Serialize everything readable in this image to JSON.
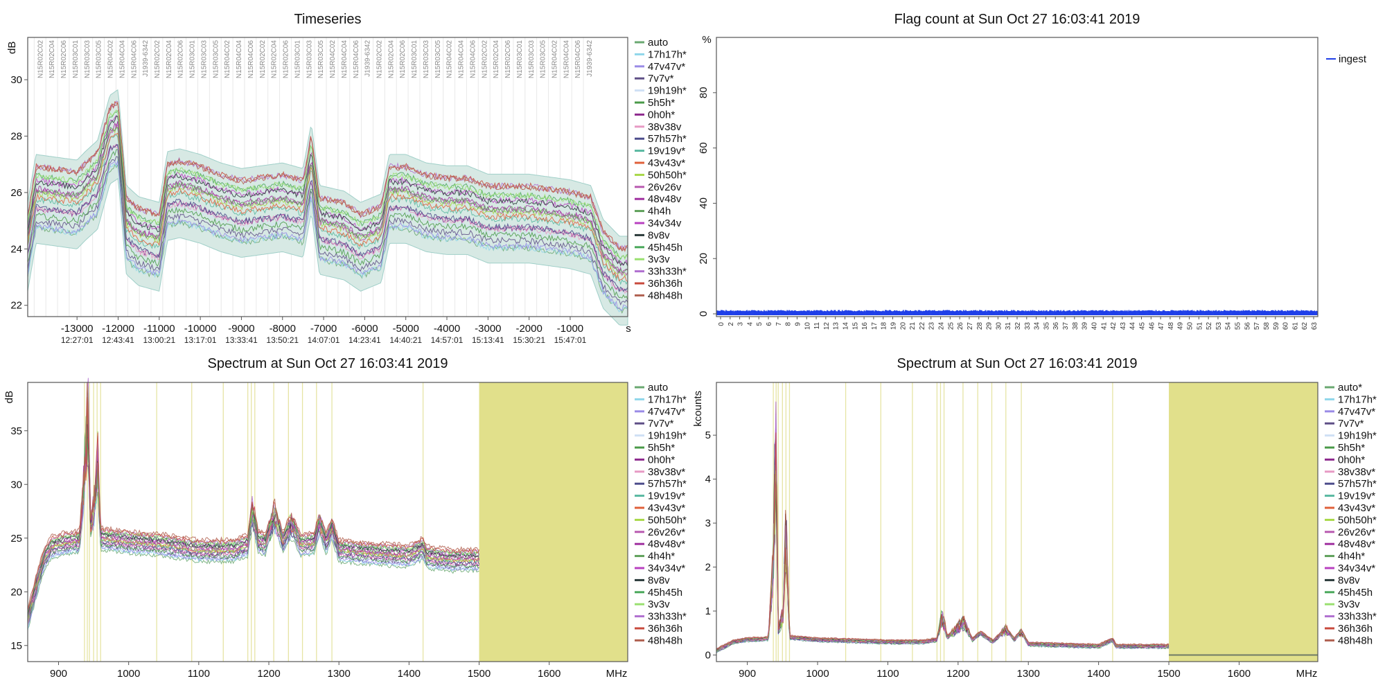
{
  "chart_data": [
    {
      "type": "line",
      "title": "Timeseries",
      "ylabel": "dB",
      "xunit": "s",
      "ylim": [
        21.6,
        31.5
      ],
      "xlim": [
        -14200,
        400
      ],
      "yticks": [
        22,
        24,
        26,
        28,
        30
      ],
      "xticks": [
        -13000,
        -12000,
        -11000,
        -10000,
        -9000,
        -8000,
        -7000,
        -6000,
        -5000,
        -4000,
        -3000,
        -2000,
        -1000
      ],
      "xtick_times": [
        "12:27:01",
        "12:43:41",
        "13:00:21",
        "13:17:01",
        "13:33:41",
        "13:50:21",
        "14:07:01",
        "14:23:41",
        "14:40:21",
        "14:57:01",
        "15:13:41",
        "15:30:21",
        "15:47:01"
      ],
      "scan_labels": [
        "N15R02C02",
        "N15R02C04",
        "N15R02C06",
        "N15R03C01",
        "N15R03C03",
        "N15R03C05",
        "N15R04C02",
        "N15R04C04",
        "N15R04C06",
        "J1939-6342",
        "N15R02C02",
        "N15R02C04",
        "N15R02C06",
        "N15R03C01",
        "N15R03C03",
        "N15R03C05",
        "N15R04C02",
        "N15R04C04",
        "N15R04C06",
        "N15R02C02",
        "N15R02C04",
        "N15R02C06",
        "N15R03C01",
        "N15R03C03",
        "N15R03C05",
        "N15R04C02",
        "N15R04C04",
        "N15R04C06",
        "J1939-6342",
        "N15R02C02",
        "N15R02C04",
        "N15R02C06",
        "N15R03C01",
        "N15R03C03",
        "N15R03C05",
        "N15R04C02",
        "N15R04C04",
        "N15R04C06",
        "N15R02C02",
        "N15R02C04",
        "N15R02C06",
        "N15R03C01",
        "N15R03C03",
        "N15R03C05",
        "N15R04C02",
        "N15R04C04",
        "N15R04C06",
        "J1939-6342"
      ],
      "legend_position": "right",
      "legend": [
        "auto",
        "17h17h*",
        "47v47v*",
        "7v7v*",
        "19h19h*",
        "5h5h*",
        "0h0h*",
        "38v38v",
        "57h57h*",
        "19v19v*",
        "43v43v*",
        "50h50h*",
        "26v26v",
        "48v48v",
        "4h4h",
        "34v34v",
        "8v8v",
        "45h45h",
        "3v3v",
        "33h33h*",
        "36h36h",
        "48h48h"
      ],
      "baseline_levels_dB": [
        [
          -14200,
          24.2
        ],
        [
          -14000,
          25.9
        ],
        [
          -13500,
          25.8
        ],
        [
          -13000,
          25.7
        ],
        [
          -12800,
          26.0
        ],
        [
          -12500,
          26.4
        ],
        [
          -12200,
          28.0
        ],
        [
          -12000,
          28.2
        ],
        [
          -11800,
          24.8
        ],
        [
          -11500,
          24.4
        ],
        [
          -11000,
          24.2
        ],
        [
          -10800,
          26.0
        ],
        [
          -10500,
          26.1
        ],
        [
          -10000,
          25.9
        ],
        [
          -9500,
          25.6
        ],
        [
          -9000,
          25.4
        ],
        [
          -8500,
          25.5
        ],
        [
          -8000,
          25.6
        ],
        [
          -7500,
          25.4
        ],
        [
          -7300,
          27.0
        ],
        [
          -7100,
          24.8
        ],
        [
          -6500,
          24.6
        ],
        [
          -6100,
          24.2
        ],
        [
          -5600,
          24.5
        ],
        [
          -5400,
          25.9
        ],
        [
          -5000,
          25.9
        ],
        [
          -4500,
          25.6
        ],
        [
          -4000,
          25.5
        ],
        [
          -3500,
          25.5
        ],
        [
          -3000,
          25.2
        ],
        [
          -2500,
          25.2
        ],
        [
          -2000,
          25.2
        ],
        [
          -1500,
          25.1
        ],
        [
          -1000,
          25.0
        ],
        [
          -500,
          24.8
        ],
        [
          -200,
          23.6
        ],
        [
          200,
          23.0
        ]
      ],
      "grid": false
    },
    {
      "type": "line",
      "title": "Flag count at Sun Oct 27 16:03:41 2019",
      "ylabel": "%",
      "ylim": [
        -1,
        100
      ],
      "yticks": [
        0,
        20,
        40,
        60,
        80
      ],
      "xticks": [
        0,
        2,
        3,
        4,
        5,
        6,
        7,
        8,
        9,
        10,
        11,
        12,
        13,
        14,
        15,
        16,
        17,
        18,
        19,
        20,
        21,
        22,
        23,
        24,
        25,
        26,
        27,
        28,
        29,
        30,
        31,
        32,
        33,
        34,
        35,
        36,
        37,
        38,
        39,
        40,
        41,
        42,
        43,
        44,
        45,
        46,
        47,
        48,
        49,
        50,
        51,
        52,
        53,
        54,
        55,
        56,
        57,
        58,
        59,
        60,
        61,
        62,
        63
      ],
      "legend_position": "top-right",
      "legend": [
        "ingest"
      ],
      "series": [
        {
          "name": "ingest",
          "value_percent": 0.9
        }
      ],
      "grid": false
    },
    {
      "type": "line",
      "title": "Spectrum at Sun Oct 27 16:03:41 2019",
      "ylabel": "dB",
      "xunit": "MHz",
      "xlim": [
        856,
        1712
      ],
      "ylim": [
        13.5,
        39.5
      ],
      "yticks": [
        15,
        20,
        25,
        30,
        35
      ],
      "xticks": [
        900,
        1000,
        1100,
        1200,
        1300,
        1400,
        1500,
        1600
      ],
      "shaded_range_MHz": [
        1500,
        1712
      ],
      "flag_lines_MHz": [
        937,
        941,
        944,
        950,
        955,
        960,
        1040,
        1090,
        1135,
        1170,
        1175,
        1180,
        1207,
        1228,
        1248,
        1268,
        1290,
        1420
      ],
      "legend_position": "right",
      "legend": [
        "auto",
        "17h17h*",
        "47v47v*",
        "7v7v*",
        "19h19h*",
        "5h5h*",
        "0h0h*",
        "38v38v*",
        "57h57h*",
        "19v19v*",
        "43v43v*",
        "50h50h*",
        "26v26v*",
        "48v48v*",
        "4h4h*",
        "34v34v*",
        "8v8v",
        "45h45h",
        "3v3v",
        "33h33h*",
        "36h36h",
        "48h48h"
      ],
      "mean_spectrum_dB": [
        [
          856,
          17.5
        ],
        [
          870,
          21.0
        ],
        [
          880,
          23.2
        ],
        [
          890,
          24.2
        ],
        [
          910,
          24.6
        ],
        [
          930,
          24.7
        ],
        [
          938,
          33.0
        ],
        [
          942,
          38.0
        ],
        [
          946,
          26.0
        ],
        [
          952,
          29.0
        ],
        [
          956,
          33.0
        ],
        [
          960,
          25.0
        ],
        [
          1000,
          24.7
        ],
        [
          1050,
          24.4
        ],
        [
          1100,
          23.9
        ],
        [
          1150,
          23.9
        ],
        [
          1170,
          24.4
        ],
        [
          1177,
          28.0
        ],
        [
          1185,
          24.7
        ],
        [
          1195,
          24.5
        ],
        [
          1208,
          27.5
        ],
        [
          1220,
          24.6
        ],
        [
          1232,
          26.5
        ],
        [
          1245,
          24.4
        ],
        [
          1265,
          24.6
        ],
        [
          1272,
          26.5
        ],
        [
          1282,
          24.6
        ],
        [
          1290,
          26.0
        ],
        [
          1300,
          23.9
        ],
        [
          1350,
          23.6
        ],
        [
          1400,
          23.4
        ],
        [
          1420,
          24.1
        ],
        [
          1425,
          23.3
        ],
        [
          1460,
          23.0
        ],
        [
          1500,
          23.0
        ]
      ],
      "grid": false
    },
    {
      "type": "line",
      "title": "Spectrum at Sun Oct 27 16:03:41 2019",
      "ylabel": "kcounts",
      "xunit": "MHz",
      "xlim": [
        856,
        1712
      ],
      "ylim": [
        -0.15,
        6.2
      ],
      "yticks": [
        0,
        1,
        2,
        3,
        4,
        5
      ],
      "xticks": [
        900,
        1000,
        1100,
        1200,
        1300,
        1400,
        1500,
        1600
      ],
      "shaded_range_MHz": [
        1500,
        1712
      ],
      "flag_lines_MHz": [
        937,
        941,
        944,
        950,
        955,
        960,
        1040,
        1090,
        1135,
        1170,
        1175,
        1180,
        1207,
        1228,
        1248,
        1268,
        1290,
        1420
      ],
      "legend_position": "right",
      "legend": [
        "auto*",
        "17h17h*",
        "47v47v*",
        "7v7v*",
        "19h19h*",
        "5h5h*",
        "0h0h*",
        "38v38v*",
        "57h57h*",
        "19v19v*",
        "43v43v*",
        "50h50h*",
        "26v26v*",
        "48v48v*",
        "4h4h*",
        "34v34v*",
        "8v8v",
        "45h45h",
        "3v3v",
        "33h33h*",
        "36h36h",
        "48h48h"
      ],
      "mean_spectrum_kcounts": [
        [
          856,
          0.1
        ],
        [
          880,
          0.3
        ],
        [
          900,
          0.35
        ],
        [
          930,
          0.37
        ],
        [
          937,
          2.3
        ],
        [
          941,
          5.8
        ],
        [
          944,
          0.6
        ],
        [
          951,
          1.0
        ],
        [
          955,
          3.2
        ],
        [
          960,
          0.4
        ],
        [
          1000,
          0.35
        ],
        [
          1100,
          0.3
        ],
        [
          1150,
          0.3
        ],
        [
          1170,
          0.35
        ],
        [
          1177,
          0.95
        ],
        [
          1185,
          0.4
        ],
        [
          1208,
          0.8
        ],
        [
          1220,
          0.35
        ],
        [
          1232,
          0.5
        ],
        [
          1250,
          0.3
        ],
        [
          1268,
          0.6
        ],
        [
          1280,
          0.35
        ],
        [
          1290,
          0.55
        ],
        [
          1300,
          0.25
        ],
        [
          1400,
          0.2
        ],
        [
          1420,
          0.35
        ],
        [
          1425,
          0.2
        ],
        [
          1500,
          0.2
        ],
        [
          1501,
          0.0
        ],
        [
          1712,
          0.0
        ]
      ],
      "grid": false
    }
  ],
  "colors": {
    "axis": "#555555",
    "flag_line": "#e6e4a4",
    "shaded": "#e1e08b",
    "envelope": "#d7e9e4",
    "flag_bars": "#1f3fe8",
    "legend": [
      "#6aa870",
      "#8fd6ea",
      "#9a8ce6",
      "#5e4e86",
      "#cfe0f5",
      "#4a9a48",
      "#8e2a8e",
      "#e79ac4",
      "#4c4c8c",
      "#58b8a0",
      "#e0603a",
      "#a8d848",
      "#b85ab0",
      "#a030a0",
      "#5ea05a",
      "#b840c0",
      "#2a3a3a",
      "#4aa85a",
      "#9ae070",
      "#b070d0",
      "#c84a3c",
      "#b06050"
    ]
  }
}
